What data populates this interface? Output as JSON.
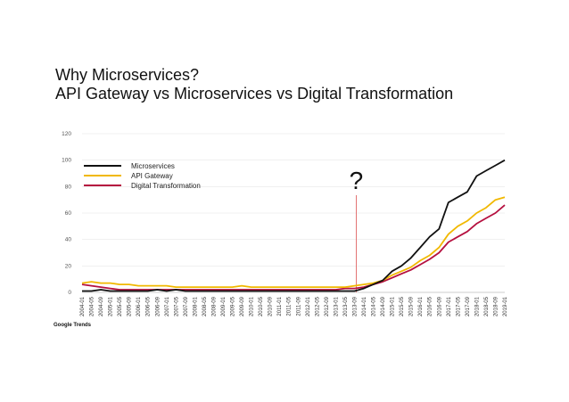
{
  "title_line1": "Why Microservices?",
  "title_line2": "API Gateway vs Microservices vs Digital Transformation",
  "source": "Google Trends",
  "annotation": {
    "text": "?",
    "x": "2013-09",
    "color": "#e06666"
  },
  "chart_data": {
    "type": "line",
    "y_ticks": [
      0,
      20,
      40,
      60,
      80,
      100,
      120
    ],
    "ylim": [
      0,
      120
    ],
    "x_labels": [
      "2004-01",
      "2004-05",
      "2004-09",
      "2005-01",
      "2005-05",
      "2005-09",
      "2006-01",
      "2006-05",
      "2006-09",
      "2007-01",
      "2007-05",
      "2007-09",
      "2008-01",
      "2008-05",
      "2008-09",
      "2009-01",
      "2009-05",
      "2009-09",
      "2010-01",
      "2010-05",
      "2010-09",
      "2011-01",
      "2011-05",
      "2011-09",
      "2012-01",
      "2012-05",
      "2012-09",
      "2013-01",
      "2013-05",
      "2013-09",
      "2014-01",
      "2014-05",
      "2014-09",
      "2015-01",
      "2015-05",
      "2015-09",
      "2016-01",
      "2016-05",
      "2016-09",
      "2017-01",
      "2017-05",
      "2017-09",
      "2018-01",
      "2018-05",
      "2018-09",
      "2019-01"
    ],
    "legend_position": "top-left",
    "series": [
      {
        "name": "Microservices",
        "color": "#111111",
        "values": [
          1,
          1,
          2,
          1,
          1,
          1,
          1,
          1,
          2,
          1,
          2,
          1,
          1,
          1,
          1,
          1,
          1,
          1,
          1,
          1,
          1,
          1,
          1,
          1,
          1,
          1,
          1,
          1,
          1,
          1,
          3,
          6,
          9,
          16,
          20,
          26,
          34,
          42,
          48,
          68,
          72,
          76,
          88,
          92,
          96,
          100
        ]
      },
      {
        "name": "API Gateway",
        "color": "#f1b800",
        "values": [
          7,
          8,
          7,
          7,
          6,
          6,
          5,
          5,
          5,
          5,
          4,
          4,
          4,
          4,
          4,
          4,
          4,
          5,
          4,
          4,
          4,
          4,
          4,
          4,
          4,
          4,
          4,
          4,
          4,
          5,
          6,
          7,
          9,
          13,
          16,
          19,
          24,
          28,
          34,
          44,
          50,
          54,
          60,
          64,
          70,
          72
        ]
      },
      {
        "name": "Digital Transformation",
        "color": "#b5103f",
        "values": [
          6,
          5,
          4,
          3,
          2,
          2,
          2,
          2,
          2,
          2,
          2,
          2,
          2,
          2,
          2,
          2,
          2,
          2,
          2,
          2,
          2,
          2,
          2,
          2,
          2,
          2,
          2,
          2,
          3,
          3,
          4,
          6,
          8,
          11,
          14,
          17,
          21,
          25,
          30,
          38,
          42,
          46,
          52,
          56,
          60,
          66
        ]
      }
    ]
  }
}
